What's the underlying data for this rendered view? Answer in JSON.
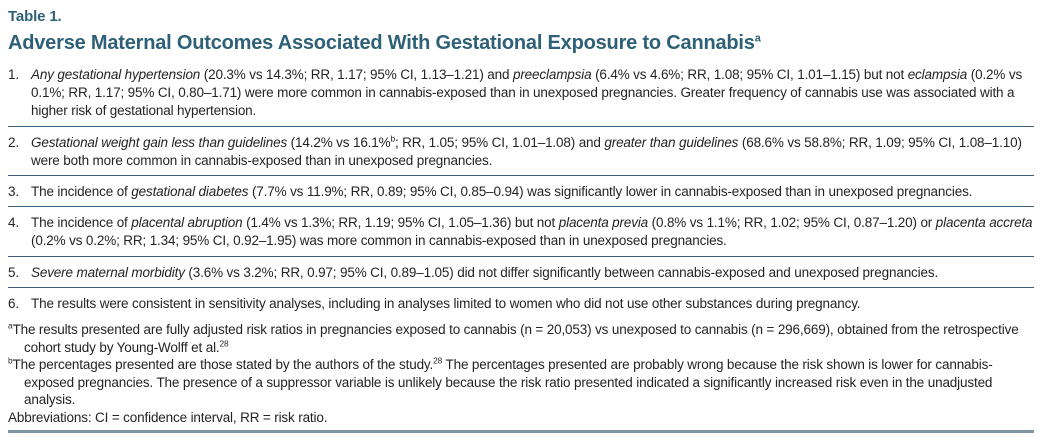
{
  "table": {
    "label": "Table 1.",
    "title": [
      {
        "t": "Adverse Maternal Outcomes Associated With Gestational Exposure to Cannabis"
      },
      {
        "t": "a",
        "sup": true
      }
    ],
    "items": [
      {
        "number": "1.",
        "segments": [
          {
            "t": "Any gestational hypertension",
            "i": true
          },
          {
            "t": " (20.3% vs 14.3%; RR, 1.17; 95% CI, 1.13–1.21) and "
          },
          {
            "t": "preeclampsia",
            "i": true
          },
          {
            "t": " (6.4% vs 4.6%; RR, 1.08; 95% CI, 1.01–1.15) but not "
          },
          {
            "t": "eclampsia",
            "i": true
          },
          {
            "t": " (0.2% vs 0.1%; RR, 1.17; 95% CI, 0.80–1.71) were more common in cannabis-exposed than in unexposed pregnancies. Greater frequency of cannabis use was associated with a higher risk of gestational hypertension."
          }
        ]
      },
      {
        "number": "2.",
        "segments": [
          {
            "t": "Gestational weight gain less than guidelines",
            "i": true
          },
          {
            "t": " (14.2% vs 16.1%"
          },
          {
            "t": "b",
            "sup": true
          },
          {
            "t": "; RR, 1.05; 95% CI, 1.01–1.08) and "
          },
          {
            "t": "greater than guidelines",
            "i": true
          },
          {
            "t": " (68.6% vs 58.8%; RR, 1.09; 95% CI, 1.08–1.10) were both more common in cannabis-exposed than in unexposed pregnancies."
          }
        ]
      },
      {
        "number": "3.",
        "segments": [
          {
            "t": "The incidence of "
          },
          {
            "t": "gestational diabetes",
            "i": true
          },
          {
            "t": " (7.7% vs 11.9%; RR, 0.89; 95% CI, 0.85–0.94) was significantly lower in cannabis-exposed than in unexposed pregnancies."
          }
        ]
      },
      {
        "number": "4.",
        "segments": [
          {
            "t": "The incidence of "
          },
          {
            "t": "placental abruption",
            "i": true
          },
          {
            "t": " (1.4% vs 1.3%; RR, 1.19; 95% CI, 1.05–1.36) but not "
          },
          {
            "t": "placenta previa",
            "i": true
          },
          {
            "t": " (0.8% vs 1.1%; RR, 1.02; 95% CI, 0.87–1.20) or "
          },
          {
            "t": "placenta accreta",
            "i": true
          },
          {
            "t": " (0.2% vs 0.2%; RR; 1.34; 95% CI, 0.92–1.95) was more common in cannabis-exposed than in unexposed pregnancies."
          }
        ]
      },
      {
        "number": "5.",
        "segments": [
          {
            "t": "Severe maternal morbidity",
            "i": true
          },
          {
            "t": " (3.6% vs 3.2%; RR, 0.97; 95% CI, 0.89–1.05) did not differ significantly between cannabis-exposed and unexposed pregnancies."
          }
        ]
      },
      {
        "number": "6.",
        "segments": [
          {
            "t": "The results were consistent in sensitivity analyses, including in analyses limited to women who did not use other substances during pregnancy."
          }
        ]
      }
    ],
    "footnotes": [
      {
        "segments": [
          {
            "t": "a",
            "sup": true
          },
          {
            "t": "The results presented are fully adjusted risk ratios in pregnancies exposed to cannabis (n = 20,053) vs unexposed to cannabis (n = 296,669), obtained from the retrospective cohort study by Young-Wolff et al."
          },
          {
            "t": "28",
            "sup": true
          }
        ]
      },
      {
        "segments": [
          {
            "t": "b",
            "sup": true
          },
          {
            "t": "The percentages presented are those stated by the authors of the study."
          },
          {
            "t": "28",
            "sup": true
          },
          {
            "t": " The percentages presented are probably wrong because the risk shown is lower for cannabis-exposed pregnancies. The presence of a suppressor variable is unlikely because the risk ratio presented indicated a significantly increased risk even in the unadjusted analysis."
          }
        ]
      }
    ],
    "abbreviations": "Abbreviations: CI = confidence interval, RR = risk ratio.",
    "colors": {
      "accent": "#2e6077",
      "text": "#242424",
      "divider": "#3e5f7b",
      "bottom_rule": "#7e95a4",
      "bg": "#ffffff"
    }
  }
}
